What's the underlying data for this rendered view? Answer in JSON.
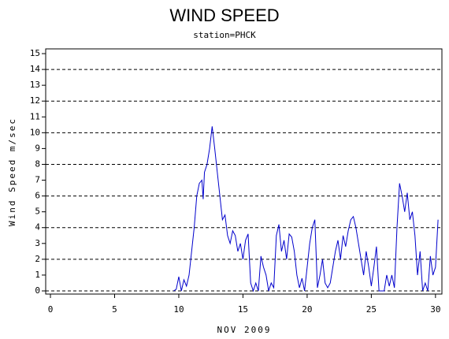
{
  "chart_data": {
    "type": "line",
    "title": "WIND SPEED",
    "subtitle": "station=PHCK",
    "y_label": "Wind Speed m/sec",
    "x_label": "NOV 2009",
    "color": "#0000cc",
    "xlim": [
      -0.37,
      30.5
    ],
    "xticks": [
      0,
      5,
      10,
      15,
      20,
      25,
      30
    ],
    "ylim": [
      -0.2,
      15.3
    ],
    "yticks": [
      0,
      1,
      2,
      3,
      4,
      5,
      6,
      7,
      8,
      9,
      10,
      11,
      12,
      13,
      14,
      15
    ],
    "grid": "dashed",
    "grid_interval": 2,
    "x": [
      9.6,
      9.8,
      10.0,
      10.2,
      10.4,
      10.6,
      10.8,
      11.0,
      11.2,
      11.4,
      11.6,
      11.8,
      11.9,
      12.0,
      12.2,
      12.4,
      12.6,
      12.8,
      13.0,
      13.2,
      13.4,
      13.6,
      13.8,
      14.0,
      14.2,
      14.4,
      14.6,
      14.8,
      15.0,
      15.2,
      15.4,
      15.6,
      15.8,
      16.0,
      16.2,
      16.4,
      16.6,
      16.8,
      17.0,
      17.2,
      17.4,
      17.6,
      17.8,
      18.0,
      18.2,
      18.4,
      18.6,
      18.8,
      19.0,
      19.2,
      19.4,
      19.6,
      19.8,
      20.0,
      20.2,
      20.4,
      20.6,
      20.8,
      21.0,
      21.2,
      21.4,
      21.6,
      21.8,
      22.0,
      22.2,
      22.4,
      22.6,
      22.8,
      23.0,
      23.2,
      23.4,
      23.6,
      23.8,
      24.0,
      24.2,
      24.4,
      24.6,
      24.8,
      25.0,
      25.2,
      25.4,
      25.6,
      25.8,
      26.0,
      26.2,
      26.4,
      26.6,
      26.8,
      27.0,
      27.2,
      27.4,
      27.6,
      27.8,
      28.0,
      28.2,
      28.4,
      28.6,
      28.8,
      29.0,
      29.2,
      29.4,
      29.6,
      29.8,
      30.0,
      30.2
    ],
    "values": [
      0,
      0.1,
      0.9,
      0,
      0.7,
      0.3,
      1.0,
      2.5,
      4.0,
      6.0,
      6.8,
      7.0,
      5.8,
      7.5,
      8.0,
      9.0,
      10.4,
      9.0,
      7.5,
      6.0,
      4.5,
      4.8,
      3.5,
      3.0,
      3.8,
      3.5,
      2.5,
      3.0,
      2.0,
      3.2,
      3.6,
      0.5,
      0,
      0.5,
      0,
      2.2,
      1.5,
      1.0,
      0,
      0.5,
      0.2,
      3.5,
      4.2,
      2.5,
      3.2,
      2.0,
      3.6,
      3.4,
      2.5,
      1.0,
      0.2,
      0.8,
      0,
      1.5,
      3.0,
      4.0,
      4.5,
      0.2,
      1.0,
      2.0,
      0.5,
      0.2,
      0.5,
      1.5,
      2.5,
      3.2,
      2.0,
      3.5,
      2.8,
      3.8,
      4.5,
      4.7,
      4.0,
      3.0,
      2.0,
      1.0,
      2.5,
      1.5,
      0.3,
      1.5,
      2.8,
      0,
      0,
      0,
      1.0,
      0.3,
      1.0,
      0.2,
      4.0,
      6.8,
      6.0,
      5.0,
      6.2,
      4.5,
      5.0,
      3.5,
      1.0,
      2.5,
      0,
      0.5,
      0,
      2.2,
      1.0,
      1.5,
      4.5
    ]
  }
}
